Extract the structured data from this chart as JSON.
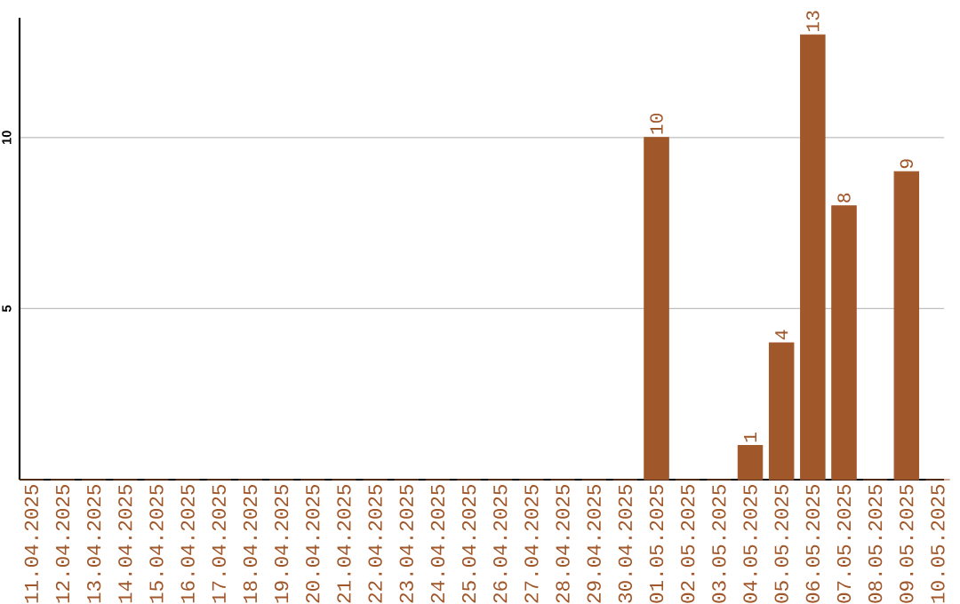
{
  "chart_data": {
    "type": "bar",
    "categories": [
      "11.04.2025",
      "12.04.2025",
      "13.04.2025",
      "14.04.2025",
      "15.04.2025",
      "16.04.2025",
      "17.04.2025",
      "18.04.2025",
      "19.04.2025",
      "20.04.2025",
      "21.04.2025",
      "22.04.2025",
      "23.04.2025",
      "24.04.2025",
      "25.04.2025",
      "26.04.2025",
      "27.04.2025",
      "28.04.2025",
      "29.04.2025",
      "30.04.2025",
      "01.05.2025",
      "02.05.2025",
      "03.05.2025",
      "04.05.2025",
      "05.05.2025",
      "06.05.2025",
      "07.05.2025",
      "08.05.2025",
      "09.05.2025",
      "10.05.2025"
    ],
    "values": [
      0,
      0,
      0,
      0,
      0,
      0,
      0,
      0,
      0,
      0,
      0,
      0,
      0,
      0,
      0,
      0,
      0,
      0,
      0,
      0,
      10,
      0,
      0,
      1,
      4,
      13,
      8,
      0,
      9,
      0
    ],
    "value_labels": [
      null,
      null,
      null,
      null,
      null,
      null,
      null,
      null,
      null,
      null,
      null,
      null,
      null,
      null,
      null,
      null,
      null,
      null,
      null,
      null,
      "10",
      null,
      null,
      "1",
      "4",
      "13",
      "8",
      null,
      "9",
      null
    ],
    "color": "#a0572a",
    "ylim": [
      0,
      13.5
    ],
    "yticks": [
      5,
      10
    ],
    "grid": "y"
  }
}
